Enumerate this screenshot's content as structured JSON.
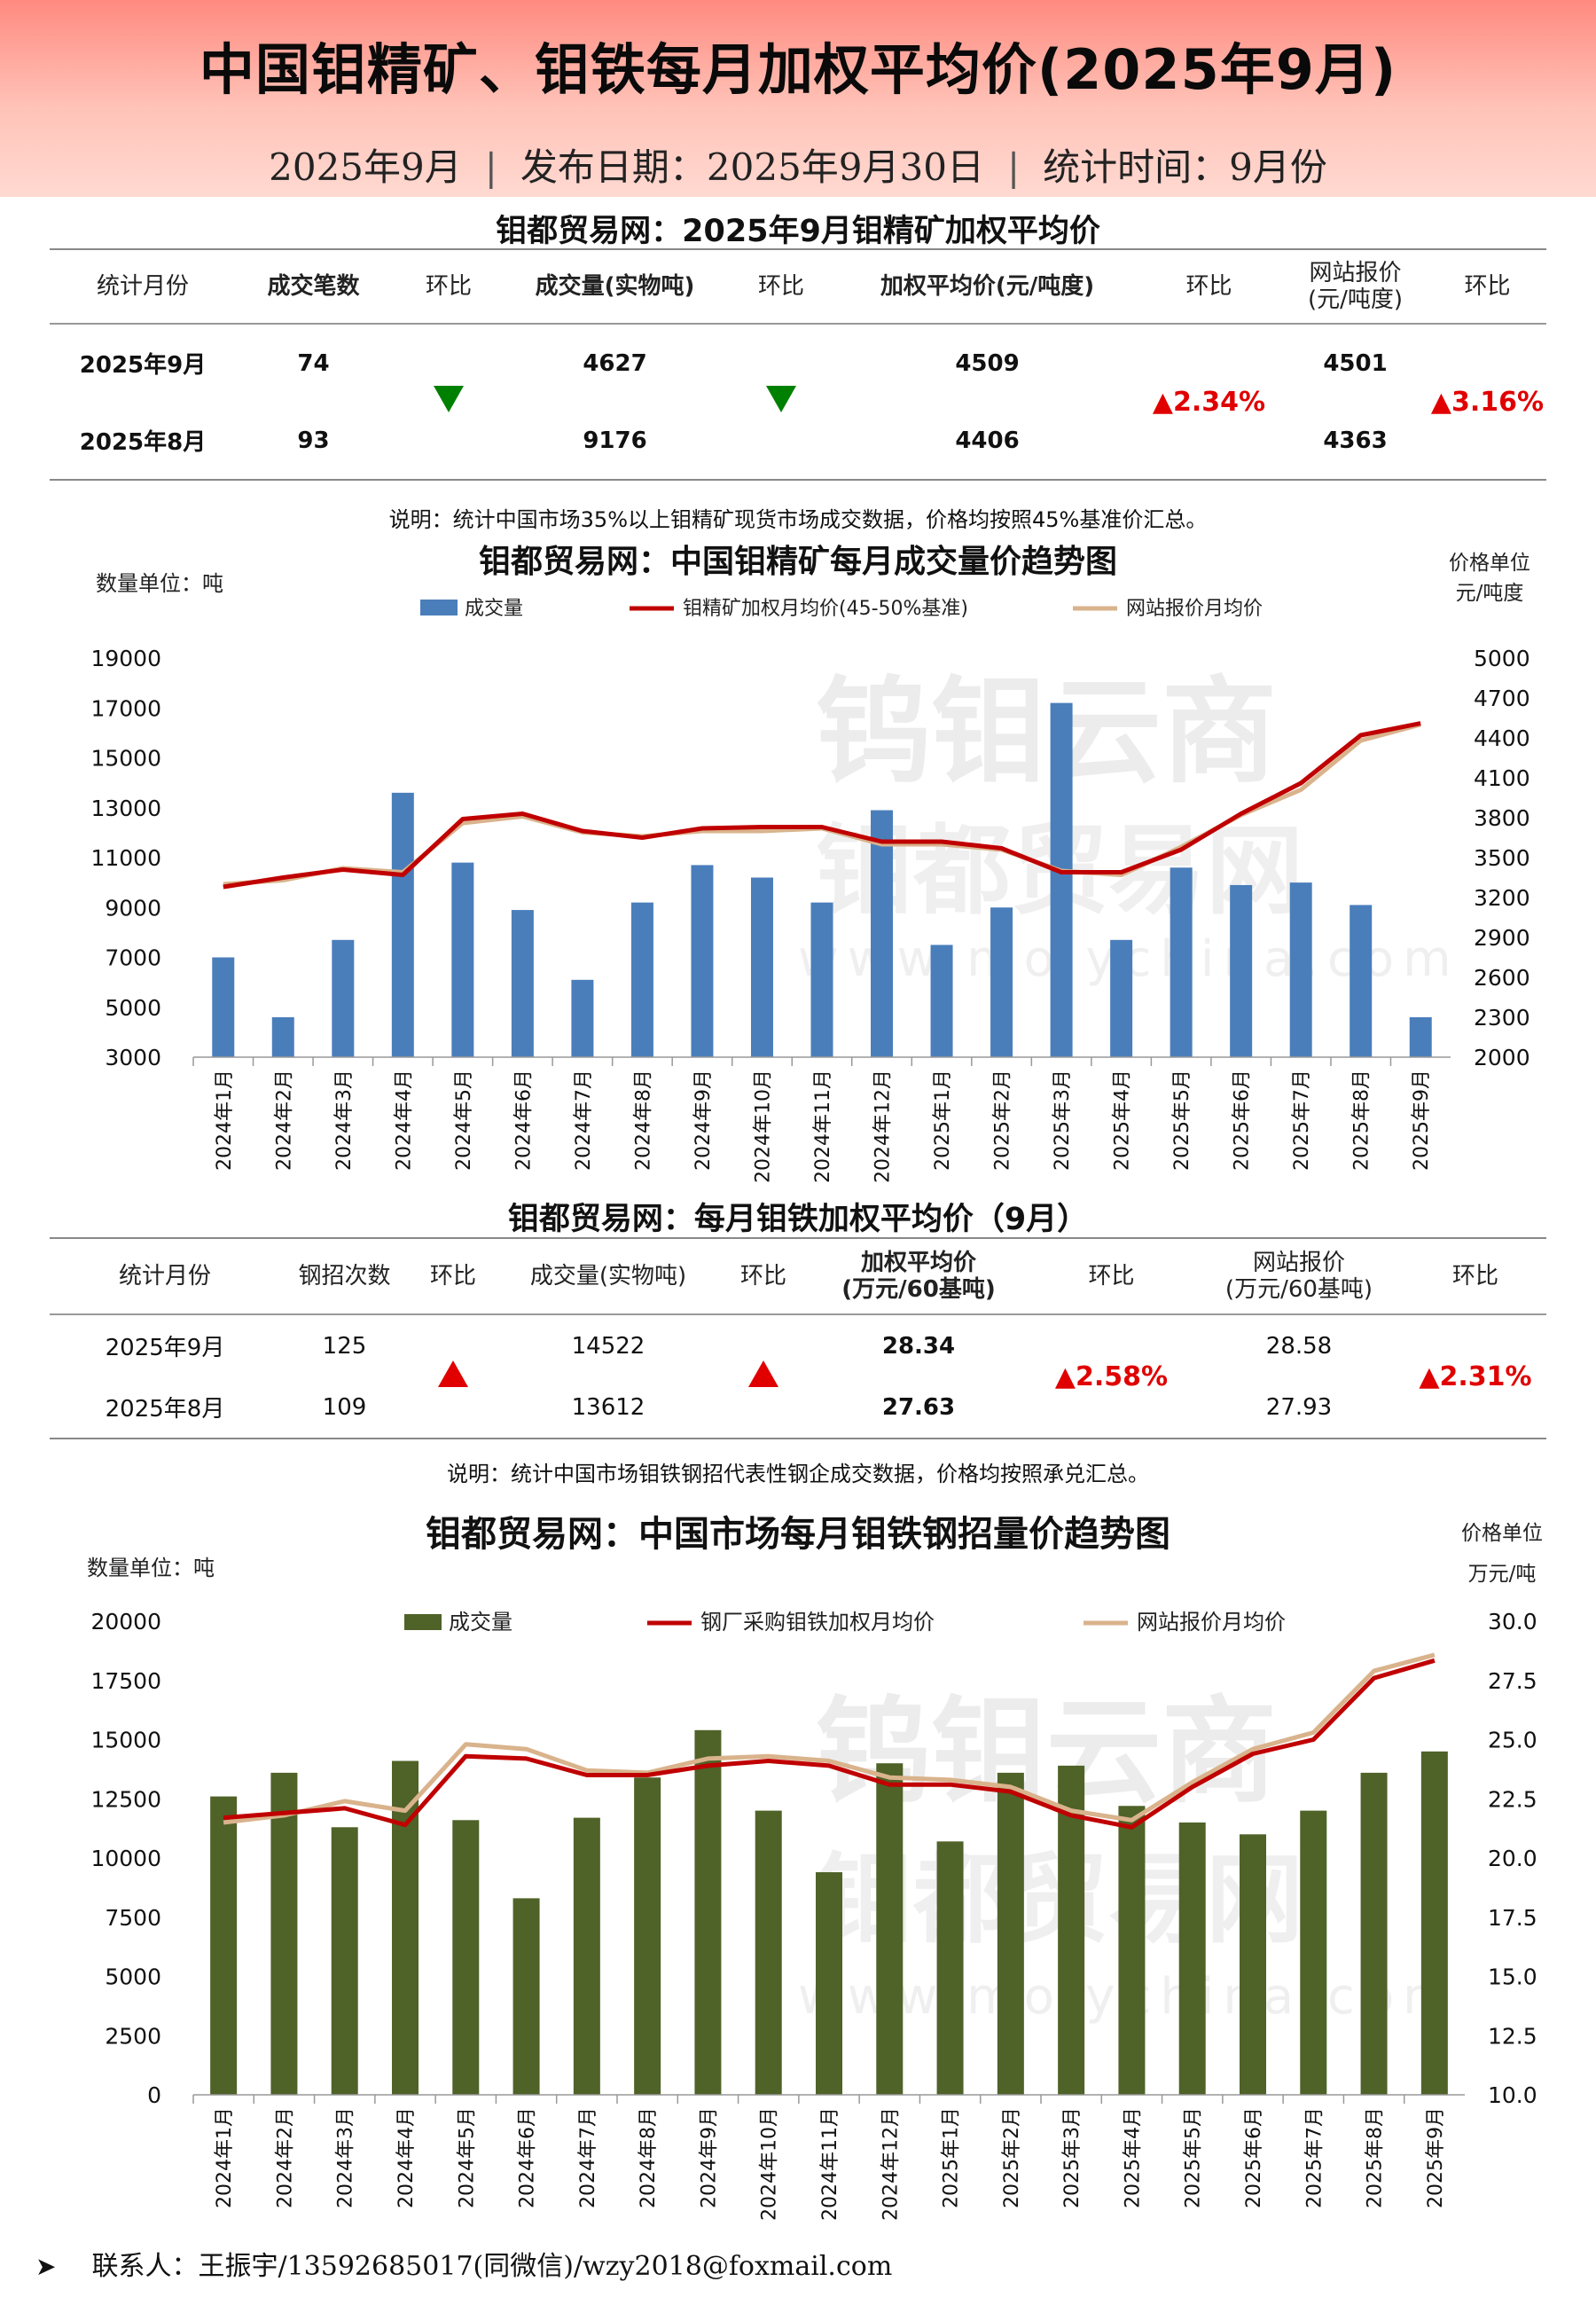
{
  "header": {
    "title": "中国钼精矿、钼铁每月加权平均价(2025年9月)",
    "sub_month": "2025年9月",
    "sub_release": "发布日期：2025年9月30日",
    "sub_stat": "统计时间：9月份",
    "sep": "|"
  },
  "table1": {
    "title": "钼都贸易网：2025年9月钼精矿加权平均价",
    "headers": [
      "统计月份",
      "成交笔数",
      "环比",
      "成交量(实物吨)",
      "环比",
      "加权平均价(元/吨度)",
      "环比",
      "网站报价",
      "(元/吨度)",
      "环比"
    ],
    "rows": [
      {
        "month": "2025年9月",
        "count": "74",
        "volume": "4627",
        "price": "4509",
        "site": "4501"
      },
      {
        "month": "2025年8月",
        "count": "93",
        "volume": "9176",
        "price": "4406",
        "site": "4363"
      }
    ],
    "change_price": "▲2.34%",
    "change_site": "▲3.16%",
    "note": "说明：统计中国市场35%以上钼精矿现货市场成交数据，价格均按照45%基准价汇总。"
  },
  "table2": {
    "title": "钼都贸易网：每月钼铁加权平均价（9月）",
    "headers": [
      "统计月份",
      "钢招次数",
      "环比",
      "成交量(实物吨)",
      "环比",
      "加权平均价",
      "(万元/60基吨)",
      "环比",
      "网站报价",
      "(万元/60基吨)",
      "环比"
    ],
    "rows": [
      {
        "month": "2025年9月",
        "count": "125",
        "volume": "14522",
        "price": "28.34",
        "site": "28.58"
      },
      {
        "month": "2025年8月",
        "count": "109",
        "volume": "13612",
        "price": "27.63",
        "site": "27.93"
      }
    ],
    "change_price": "▲2.58%",
    "change_site": "▲2.31%",
    "note": "说明：统计中国市场钼铁钢招代表性钢企成交数据，价格均按照承兑汇总。"
  },
  "watermark": {
    "line1": "钨钼云商",
    "line2": "钼都贸易网",
    "line3": "www.molychina.com"
  },
  "footer": {
    "contact": "联系人：王振宇/13592685017(同微信)/wzy2018@foxmail.com"
  },
  "colors": {
    "bar1": "#4a7ebb",
    "bar2": "#4f6228",
    "line_main": "#c00000",
    "line_site": "#d9b38c",
    "up": "#e00000",
    "down": "#008000"
  },
  "chart_data": [
    {
      "type": "bar",
      "title": "钼都贸易网：中国钼精矿每月成交量价趋势图",
      "left_unit": "数量单位：吨",
      "right_unit_1": "价格单位",
      "right_unit_2": "元/吨度",
      "categories": [
        "2024年1月",
        "2024年2月",
        "2024年3月",
        "2024年4月",
        "2024年5月",
        "2024年6月",
        "2024年7月",
        "2024年8月",
        "2024年9月",
        "2024年10月",
        "2024年11月",
        "2024年12月",
        "2025年1月",
        "2025年2月",
        "2025年3月",
        "2025年4月",
        "2025年5月",
        "2025年6月",
        "2025年7月",
        "2025年8月",
        "2025年9月"
      ],
      "series": [
        {
          "name": "成交量",
          "kind": "bar",
          "axis": "left",
          "values": [
            7000,
            4600,
            7700,
            13600,
            10800,
            8900,
            6100,
            9200,
            10700,
            10200,
            9200,
            12900,
            7500,
            9000,
            17200,
            7700,
            10600,
            9900,
            10000,
            9100,
            4600
          ]
        },
        {
          "name": "钼精矿加权月均价(45-50%基准)",
          "kind": "line",
          "axis": "right",
          "values": [
            3280,
            3350,
            3410,
            3370,
            3790,
            3830,
            3700,
            3650,
            3720,
            3730,
            3730,
            3620,
            3620,
            3570,
            3390,
            3390,
            3560,
            3830,
            4060,
            4420,
            4509
          ]
        },
        {
          "name": "网站报价月均价",
          "kind": "line",
          "axis": "right",
          "values": [
            3300,
            3330,
            3420,
            3390,
            3760,
            3810,
            3690,
            3660,
            3700,
            3700,
            3720,
            3600,
            3600,
            3560,
            3400,
            3370,
            3580,
            3820,
            4010,
            4380,
            4501
          ]
        }
      ],
      "ylim_left": [
        3000,
        19000
      ],
      "yticks_left": [
        3000,
        5000,
        7000,
        9000,
        11000,
        13000,
        15000,
        17000,
        19000
      ],
      "ylim_right": [
        2000,
        5000
      ],
      "yticks_right": [
        2000,
        2300,
        2600,
        2900,
        3200,
        3500,
        3800,
        4100,
        4400,
        4700,
        5000
      ],
      "legend": "top"
    },
    {
      "type": "bar",
      "title": "钼都贸易网：中国市场每月钼铁钢招量价趋势图",
      "left_unit": "数量单位：吨",
      "right_unit_1": "价格单位",
      "right_unit_2": "万元/吨",
      "categories": [
        "2024年1月",
        "2024年2月",
        "2024年3月",
        "2024年4月",
        "2024年5月",
        "2024年6月",
        "2024年7月",
        "2024年8月",
        "2024年9月",
        "2024年10月",
        "2024年11月",
        "2024年12月",
        "2025年1月",
        "2025年2月",
        "2025年3月",
        "2025年4月",
        "2025年5月",
        "2025年6月",
        "2025年7月",
        "2025年8月",
        "2025年9月"
      ],
      "series": [
        {
          "name": "成交量",
          "kind": "bar",
          "axis": "left",
          "values": [
            12600,
            13600,
            11300,
            14100,
            11600,
            8300,
            11700,
            13400,
            15400,
            12000,
            9400,
            14000,
            10700,
            13600,
            13900,
            12200,
            11500,
            11000,
            12000,
            13600,
            14500
          ]
        },
        {
          "name": "钢厂采购钼铁加权月均价",
          "kind": "line",
          "axis": "right",
          "values": [
            21.7,
            21.9,
            22.1,
            21.4,
            24.3,
            24.2,
            23.5,
            23.5,
            23.9,
            24.1,
            23.9,
            23.1,
            23.1,
            22.8,
            21.8,
            21.3,
            23.0,
            24.4,
            25.0,
            27.6,
            28.34
          ]
        },
        {
          "name": "网站报价月均价",
          "kind": "line",
          "axis": "right",
          "values": [
            21.5,
            21.8,
            22.4,
            22.0,
            24.8,
            24.6,
            23.7,
            23.6,
            24.2,
            24.3,
            24.1,
            23.4,
            23.3,
            23.0,
            22.0,
            21.6,
            23.2,
            24.6,
            25.3,
            27.9,
            28.58
          ]
        }
      ],
      "ylim_left": [
        0,
        20000
      ],
      "yticks_left": [
        0,
        2500,
        5000,
        7500,
        10000,
        12500,
        15000,
        17500,
        20000
      ],
      "ylim_right": [
        10,
        30
      ],
      "yticks_right": [
        "10.0",
        "12.5",
        "15.0",
        "17.5",
        "20.0",
        "22.5",
        "25.0",
        "27.5",
        "30.0"
      ],
      "legend": "top"
    }
  ]
}
